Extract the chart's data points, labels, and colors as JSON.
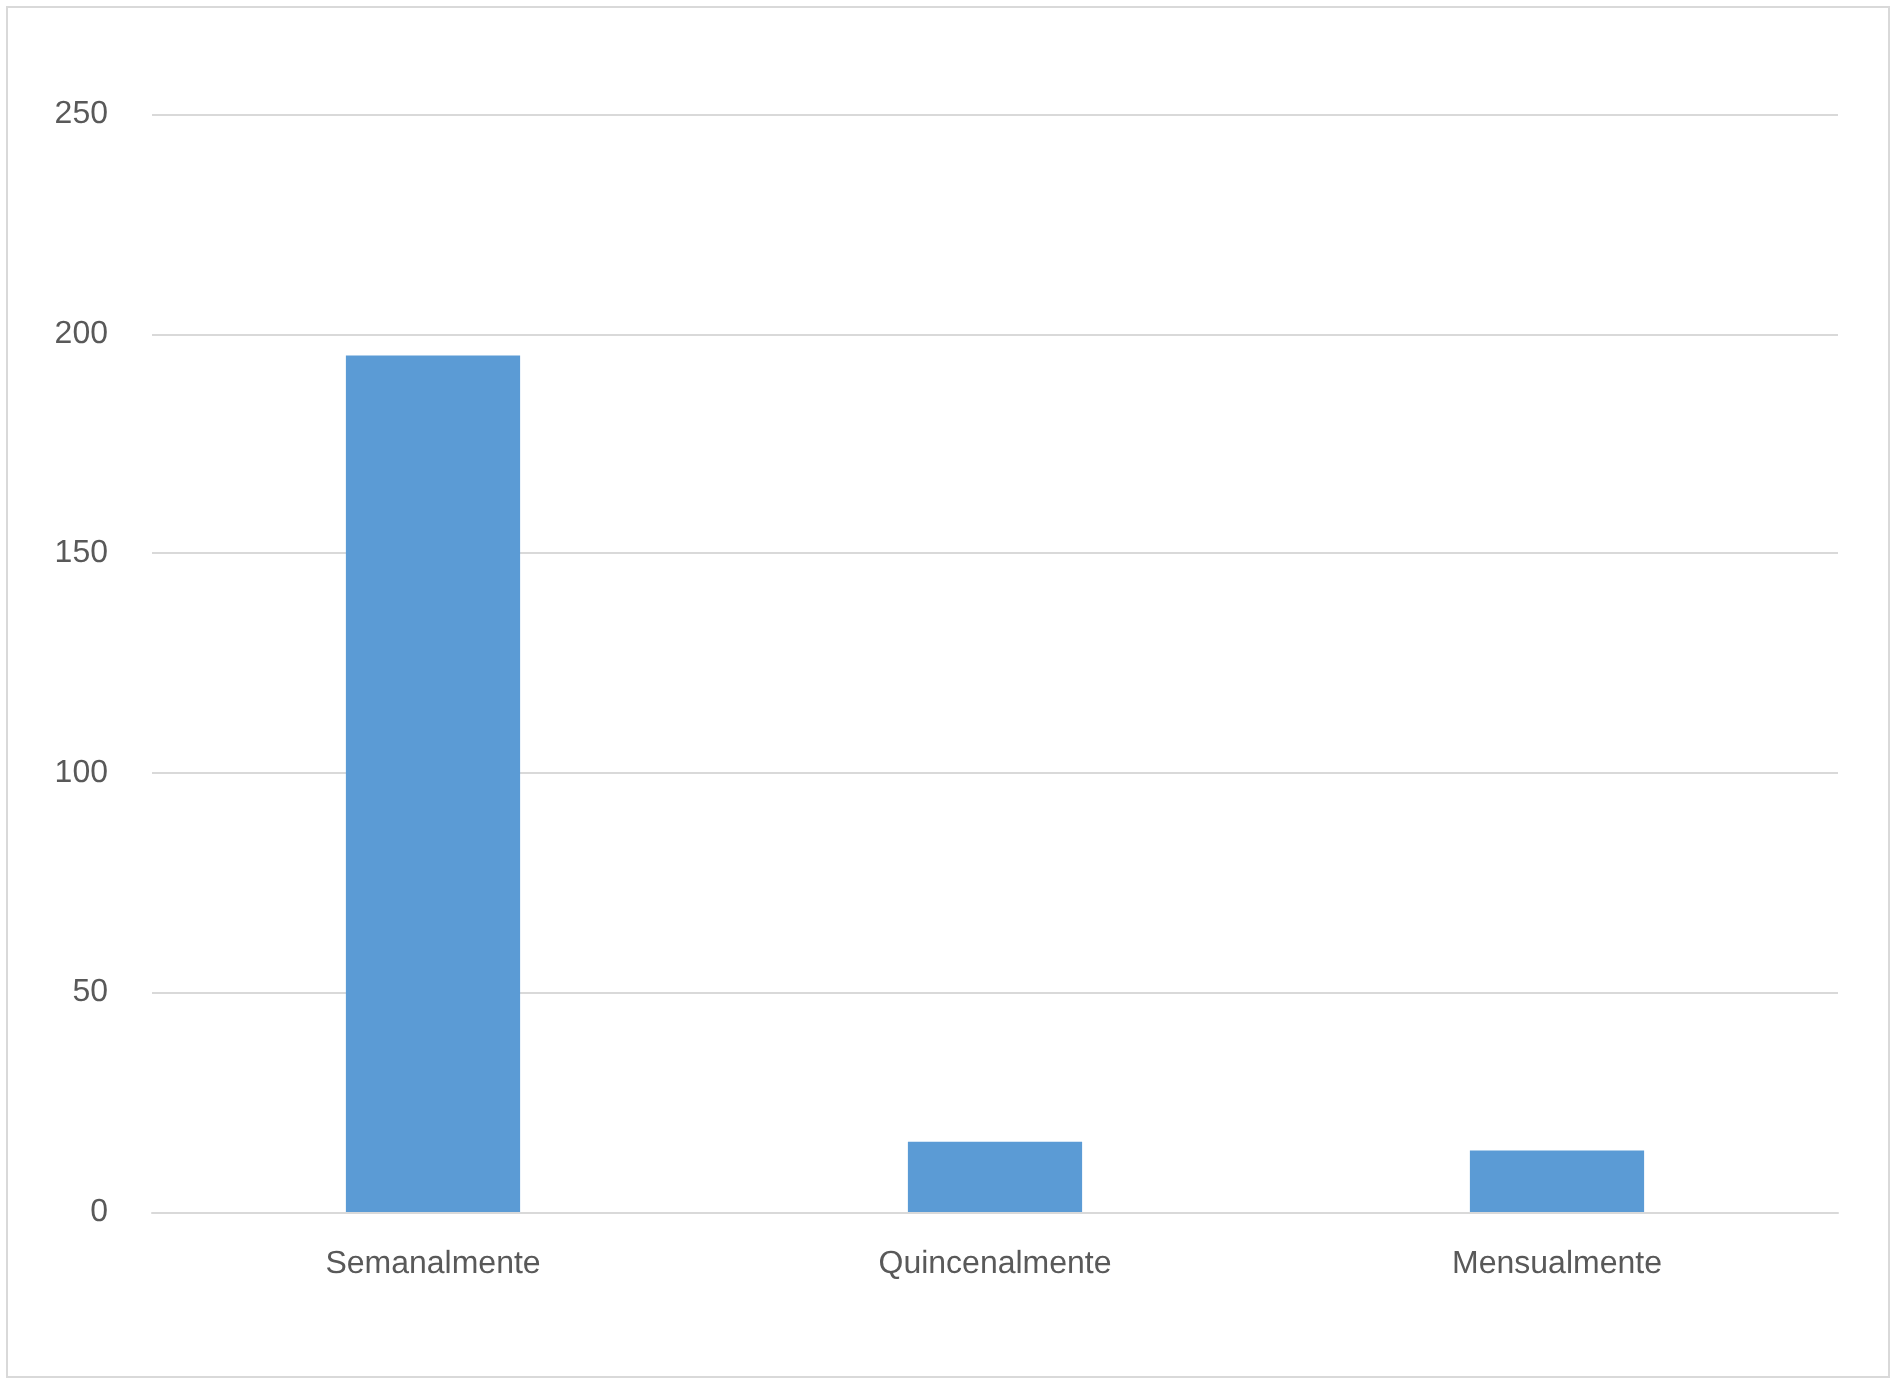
{
  "chart_data": {
    "type": "bar",
    "categories": [
      "Semanalmente",
      "Quincenalmente",
      "Mensualmente"
    ],
    "values": [
      195,
      16,
      14
    ],
    "color": "#5b9bd5",
    "ylim": [
      0,
      250
    ],
    "yticks": [
      0,
      50,
      100,
      150,
      200,
      250
    ],
    "grid": "y"
  }
}
